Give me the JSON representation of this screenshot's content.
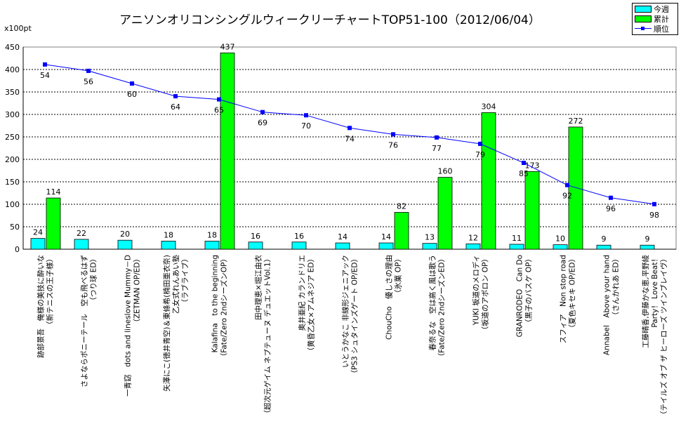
{
  "chart_data": {
    "type": "bar+line",
    "title": "アニソンオリコンシングルウィークリーチャートTOP51-100（2012/06/04）",
    "y_unit_label": "x100pt",
    "ylim": [
      0,
      450
    ],
    "yticks": [
      0,
      50,
      100,
      150,
      200,
      250,
      300,
      350,
      400,
      450
    ],
    "rank_axis": {
      "top": 48.5,
      "bottom": 112.2
    },
    "legend_position": "top-right",
    "categories": [
      [
        "跡部景吾　俺様の美技に酔いな",
        "（新テニスの王子様）"
      ],
      [
        "さよならポニーテール　空も飛べるはず",
        "（つり球 ED）"
      ],
      [
        "一青窈　dots and lineslove Mummy－D",
        "（ZETMAN OP/ED）"
      ],
      [
        "矢澤にこ(徳井青空)＆東條希(楠田亜衣奈)",
        "乙女式れんあい塾",
        "（ラブライブ）"
      ],
      [
        "Kalafina　to the beginning",
        "（Fate/Zero 2ndシーズンOP）"
      ],
      [
        "田中理恵×堀江由衣",
        "（超次元ゲイム ネプテューヌ デュエットVol.1）"
      ],
      [
        "奥井亜紀 カランドリエ",
        "（黄昏乙女×アムネジア ED）"
      ],
      [
        "いとうかなこ 非線形ジェニアック",
        "（PS3 シュタインズゲート OP/ED）"
      ],
      [
        "ChouCho　優しさの理由",
        "（氷菓 OP）"
      ],
      [
        "春奈るな　空は高く風は歌う",
        "（Fate/Zero 2ndシーズンED）"
      ],
      [
        "YUKI 坂道のメロディ",
        "（坂道のアポロン OP）"
      ],
      [
        "GRANRODEO　Can Do",
        "（黒子のバスケ OP）"
      ],
      [
        "スフィア　Non stop road",
        "（夏色キセキ OP/ED）"
      ],
      [
        "Annabel　Above your hand",
        "（さんかれあ ED）"
      ],
      [
        "工藤晴香,伊藤かな恵,平野綾",
        "Party！ Love Beat！",
        "（テイルズ オブ ザ ヒーローズ ツインブレイヴ）"
      ]
    ],
    "series": [
      {
        "name": "今週",
        "type": "bar",
        "color": "#00ffff",
        "values": [
          24,
          22,
          20,
          18,
          18,
          16,
          16,
          14,
          14,
          13,
          12,
          11,
          10,
          9,
          9
        ]
      },
      {
        "name": "累計",
        "type": "bar",
        "color": "#00ff00",
        "values": [
          114,
          null,
          null,
          null,
          437,
          null,
          null,
          null,
          82,
          160,
          304,
          173,
          272,
          null,
          null
        ]
      },
      {
        "name": "順位",
        "type": "line",
        "color": "#0000ff",
        "values": [
          54,
          56,
          60,
          64,
          65,
          69,
          70,
          74,
          76,
          77,
          79,
          85,
          92,
          96,
          98
        ]
      }
    ]
  }
}
